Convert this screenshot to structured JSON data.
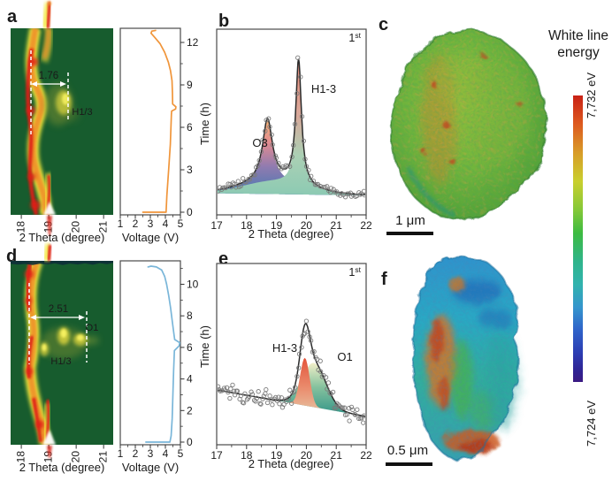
{
  "figure": {
    "panels": {
      "a": "a",
      "b": "b",
      "c": "c",
      "d": "d",
      "e": "e",
      "f": "f"
    },
    "colorbar": {
      "title_line1": "White line",
      "title_line2": "energy",
      "max_label": "7,732 eV",
      "min_label": "7,724 eV"
    },
    "scalebar_c": "1 μm",
    "scalebar_f": "0.5 μm"
  },
  "chart_data": [
    {
      "panel": "a",
      "type": "heatmap",
      "description": "operando XRD contour map during 1st cycle",
      "xlabel": "2 Theta (degree)",
      "xticks": [
        18,
        19,
        20,
        21
      ],
      "xlim": [
        17.6,
        21.35
      ],
      "time_range_h": [
        0,
        13
      ],
      "annotations": {
        "shift_value": "1.76",
        "phase_label": "H1/3",
        "dashed_lines_2theta": [
          18.35,
          19.7
        ]
      }
    },
    {
      "panel": "a_voltage",
      "type": "line",
      "xlabel": "Voltage (V)",
      "xticks": [
        1,
        2,
        3,
        4,
        5
      ],
      "xlim": [
        1,
        5
      ],
      "ylabel": "Time (h)",
      "yticks": [
        0,
        3,
        6,
        9,
        12
      ],
      "color": "#f0953a",
      "points_V_t": [
        [
          2.5,
          0
        ],
        [
          4.05,
          0
        ],
        [
          4.1,
          1.2
        ],
        [
          4.22,
          3
        ],
        [
          4.33,
          4.8
        ],
        [
          4.4,
          6.9
        ],
        [
          4.42,
          7.15
        ],
        [
          4.68,
          7.3
        ],
        [
          4.7,
          7.45
        ],
        [
          4.48,
          7.65
        ],
        [
          4.47,
          8.4
        ],
        [
          4.44,
          9.3
        ],
        [
          4.34,
          10.0
        ],
        [
          4.2,
          10.6
        ],
        [
          3.95,
          11.3
        ],
        [
          3.65,
          11.9
        ],
        [
          3.3,
          12.35
        ],
        [
          3.05,
          12.65
        ],
        [
          3.1,
          12.8
        ],
        [
          3.35,
          12.85
        ]
      ]
    },
    {
      "panel": "b",
      "type": "scatter_fit",
      "cycle_num": "1",
      "cycle_sup": "st",
      "xlabel": "2 Theta (degree)",
      "xticks": [
        17,
        18,
        19,
        20,
        21,
        22
      ],
      "xlim": [
        17,
        22
      ],
      "peaks": [
        {
          "name": "O3",
          "center": 18.7,
          "height": 0.5,
          "width": 0.2,
          "shape": "lorentzian",
          "label_color": "#1a1a1a"
        },
        {
          "name": "H1-3",
          "center": 19.74,
          "height": 1.0,
          "width": 0.115,
          "shape": "lorentzian",
          "label_color": "#4a7fb5"
        },
        {
          "name": "background",
          "center": 18.9,
          "height": 0.095,
          "width": 1.05,
          "shape": "gaussian",
          "label_color": "#3e79b4"
        }
      ]
    },
    {
      "panel": "c",
      "type": "particle_3d",
      "scalebar": "1 μm",
      "appearance": "green particle with orange-red patches",
      "colormap_range_eV": [
        7724,
        7732
      ]
    },
    {
      "panel": "d",
      "type": "heatmap",
      "description": "operando XRD contour map during 1st cycle",
      "xlabel": "2 Theta (degree)",
      "xticks": [
        18,
        19,
        20,
        21
      ],
      "xlim": [
        17.6,
        21.35
      ],
      "time_range_h": [
        0,
        11.5
      ],
      "annotations": {
        "shift_value": "2.51",
        "phase_label_1": "O1",
        "phase_label_2": "H1/3",
        "dashed_lines_2theta": [
          18.3,
          20.4
        ]
      }
    },
    {
      "panel": "d_voltage",
      "type": "line",
      "xlabel": "Voltage (V)",
      "xticks": [
        1,
        2,
        3,
        4,
        5
      ],
      "xlim": [
        1,
        5
      ],
      "ylabel": "Time (h)",
      "yticks": [
        0,
        2,
        4,
        6,
        8,
        10
      ],
      "color": "#7ab6d9",
      "points_V_t": [
        [
          2.7,
          0
        ],
        [
          4.3,
          0
        ],
        [
          4.38,
          0.4
        ],
        [
          4.45,
          1.5
        ],
        [
          4.5,
          3
        ],
        [
          4.55,
          4.5
        ],
        [
          4.6,
          5.8
        ],
        [
          4.92,
          6.1
        ],
        [
          4.95,
          6.3
        ],
        [
          4.62,
          6.5
        ],
        [
          4.55,
          7
        ],
        [
          4.45,
          7.7
        ],
        [
          4.35,
          8.5
        ],
        [
          4.22,
          9.3
        ],
        [
          4.08,
          10
        ],
        [
          3.95,
          10.5
        ],
        [
          3.75,
          10.9
        ],
        [
          3.4,
          11.1
        ],
        [
          3.05,
          11.15
        ],
        [
          2.85,
          11.1
        ]
      ]
    },
    {
      "panel": "e",
      "type": "scatter_fit",
      "cycle_num": "1",
      "cycle_sup": "st",
      "xlabel": "2 Theta (degree)",
      "xticks": [
        17,
        18,
        19,
        20,
        21,
        22
      ],
      "xlim": [
        17,
        22
      ],
      "peaks": [
        {
          "name": "H1-3",
          "center": 19.95,
          "height": 0.54,
          "width": 0.16,
          "shape": "gaussian",
          "label_color": "#4a7fb5"
        },
        {
          "name": "O1",
          "center": 20.25,
          "height": 0.5,
          "width": 0.4,
          "shape": "gaussian",
          "label_color": "#b03328"
        }
      ]
    },
    {
      "panel": "f",
      "type": "particle_3d",
      "scalebar": "0.5 μm",
      "appearance": "blue-teal particle with orange-red patches",
      "colormap_range_eV": [
        7724,
        7732
      ]
    },
    {
      "panel": "colorbar",
      "type": "colorbar",
      "title": "White line energy",
      "max": "7,732 eV",
      "min": "7,724 eV",
      "max_eV": 7732,
      "min_eV": 7724
    }
  ]
}
